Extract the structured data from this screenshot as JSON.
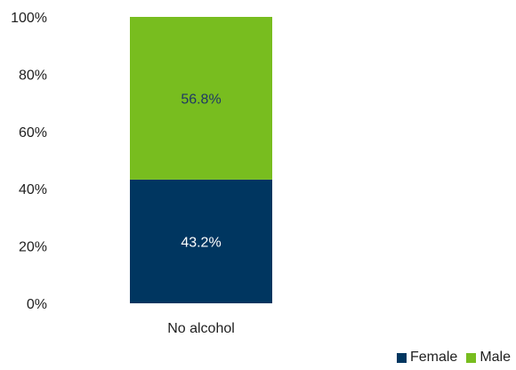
{
  "chart_data": {
    "type": "bar",
    "stacked": true,
    "categories": [
      "No alcohol"
    ],
    "series": [
      {
        "name": "Female",
        "values": [
          43.2
        ],
        "color": "#003660",
        "label_color": "#ffffff"
      },
      {
        "name": "Male",
        "values": [
          56.8
        ],
        "color": "#78bd1f",
        "label_color": "#1f3864"
      }
    ],
    "data_labels": [
      [
        "43.2%"
      ],
      [
        "56.8%"
      ]
    ],
    "ylim": [
      0,
      100
    ],
    "yticks": [
      0,
      20,
      40,
      60,
      80,
      100
    ],
    "ytick_labels": [
      "0%",
      "20%",
      "40%",
      "60%",
      "80%",
      "100%"
    ],
    "grid": false,
    "legend_position": "bottom-right"
  }
}
